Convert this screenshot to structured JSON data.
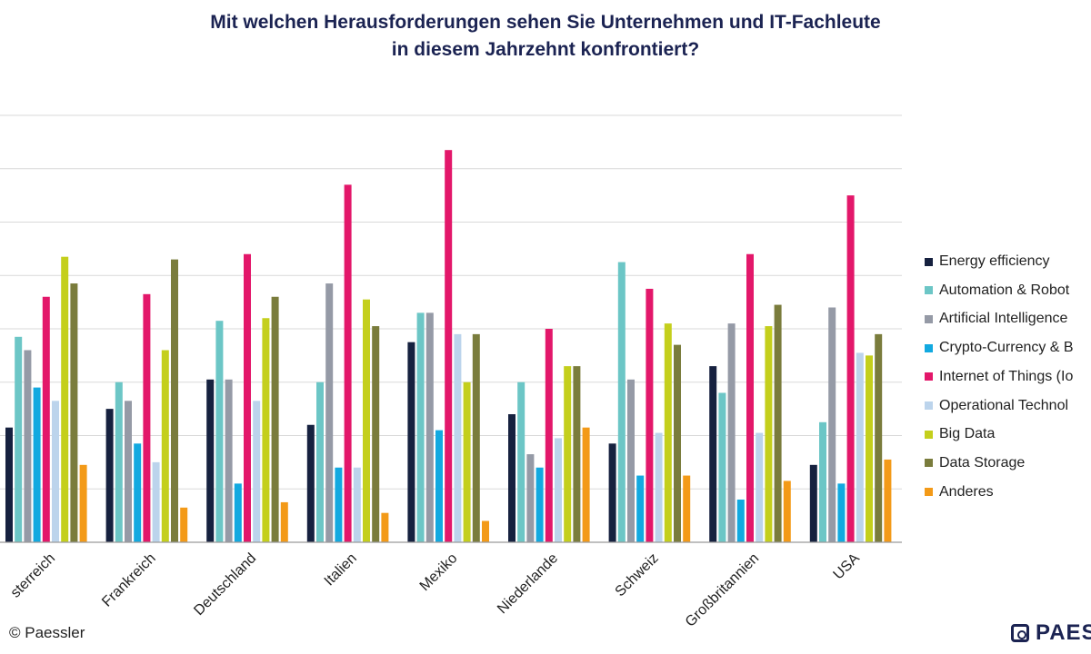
{
  "chart_data": {
    "type": "bar",
    "title_lines": [
      "Mit welchen Herausforderungen sehen Sie Unternehmen und IT-Fachleute",
      "in diesem Jahrzehnt konfrontiert?"
    ],
    "categories": [
      "Österreich",
      "Frankreich",
      "Deutschland",
      "Italien",
      "Mexiko",
      "Niederlande",
      "Schweiz",
      "Großbritannien",
      "USA"
    ],
    "category_labels_visible": [
      "sterreich",
      "Frankreich",
      "Deutschland",
      "Italien",
      "Mexiko",
      "Niederlande",
      "Schweiz",
      "Großbritannien",
      "USA"
    ],
    "series": [
      {
        "name": "Energy efficiency",
        "legend_label": "Energy efficiency",
        "color": "#16213f",
        "values": [
          21.5,
          25,
          30.5,
          22,
          37.5,
          24,
          18.5,
          33,
          14.5
        ]
      },
      {
        "name": "Automation & Robotics",
        "legend_label": "Automation & Robot",
        "color": "#6cc6c6",
        "values": [
          38.5,
          30,
          41.5,
          30,
          43,
          30,
          52.5,
          28,
          22.5
        ]
      },
      {
        "name": "Artificial Intelligence",
        "legend_label": "Artificial Intelligence",
        "color": "#959aa6",
        "values": [
          36,
          26.5,
          30.5,
          48.5,
          43,
          16.5,
          30.5,
          41,
          44
        ]
      },
      {
        "name": "Crypto-Currency & Blockchain",
        "legend_label": "Crypto-Currency & B",
        "color": "#12a9e0",
        "values": [
          29,
          18.5,
          11,
          14,
          21,
          14,
          12.5,
          8,
          11
        ]
      },
      {
        "name": "Internet of Things (IoT)",
        "legend_label": "Internet of Things (Io",
        "color": "#e3176a",
        "values": [
          46,
          46.5,
          54,
          67,
          73.5,
          40,
          47.5,
          54,
          65
        ]
      },
      {
        "name": "Operational Technology",
        "legend_label": "Operational Technol",
        "color": "#bcd4ec",
        "values": [
          26.5,
          15,
          26.5,
          14,
          39,
          19.5,
          20.5,
          20.5,
          35.5
        ]
      },
      {
        "name": "Big Data",
        "legend_label": "Big Data",
        "color": "#c4cf1c",
        "values": [
          53.5,
          36,
          42,
          45.5,
          30,
          33,
          41,
          40.5,
          35
        ]
      },
      {
        "name": "Data Storage",
        "legend_label": "Data Storage",
        "color": "#7a7c3c",
        "values": [
          48.5,
          53,
          46,
          40.5,
          39,
          33,
          37,
          44.5,
          39
        ]
      },
      {
        "name": "Anderes",
        "legend_label": "Anderes",
        "color": "#f39a18",
        "values": [
          14.5,
          6.5,
          7.5,
          5.5,
          4,
          21.5,
          12.5,
          11.5,
          15.5
        ]
      }
    ],
    "ylim": [
      0,
      80
    ],
    "y_gridlines": [
      0,
      10,
      20,
      30,
      40,
      50,
      60,
      70,
      80
    ],
    "y_tick_labels_shown": false,
    "grid": true,
    "xlabel": "",
    "ylabel": "",
    "legend": "right"
  },
  "footer": {
    "credit": "© Paessler",
    "brand": "PAES"
  }
}
